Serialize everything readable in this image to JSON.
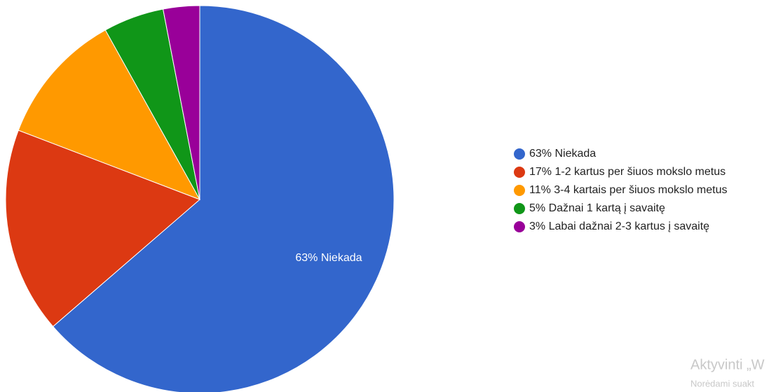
{
  "chart_data": {
    "type": "pie",
    "categories": [
      "63% Niekada",
      "17% 1-2 kartus per šiuos mokslo metus",
      "11% 3-4 kartais per šiuos mokslo metus",
      "5% Dažnai 1 kartą į savaitę",
      "3% Labai dažnai 2-3 kartus į savaitę"
    ],
    "values": [
      63,
      17,
      11,
      5,
      3
    ],
    "value_labels": [
      "63% Niekada",
      null,
      null,
      null,
      null
    ],
    "colors": [
      "#3366cc",
      "#dc3912",
      "#ff9900",
      "#109618",
      "#990099"
    ],
    "legend": "right"
  },
  "watermark": [
    "Aktyvinti „W",
    "Norėdami suakt"
  ]
}
